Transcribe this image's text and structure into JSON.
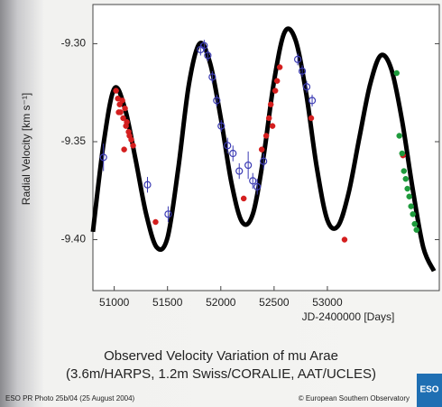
{
  "chart_data": {
    "type": "scatter",
    "title": "Observed Velocity Variation of mu Arae",
    "subtitle": "(3.6m/HARPS, 1.2m Swiss/CORALIE, AAT/UCLES)",
    "x_label": "JD-2400000 [Days]",
    "y_label": "Radial Velocity [km s⁻¹]",
    "xlim": [
      50800,
      54050
    ],
    "xticks": [
      51000,
      51500,
      52000,
      52500,
      53000
    ],
    "ylim": [
      -9.426,
      -9.28
    ],
    "yticks": [
      {
        "value": -9.3,
        "label": "-9.30"
      },
      -9.35,
      {
        "value": -9.4,
        "label": "-9.40"
      }
    ],
    "grid": false,
    "series": [
      {
        "type": "line",
        "color": "#000000",
        "x": [
          50800,
          50900,
          51000,
          51100,
          51200,
          51300,
          51400,
          51500,
          51600,
          51700,
          51800,
          51900,
          52000,
          52100,
          52200,
          52300,
          52400,
          52500,
          52600,
          52700,
          52800,
          52900,
          53000,
          53100,
          53200,
          53300,
          53400,
          53500,
          53600,
          53700,
          53800,
          53900,
          54000
        ],
        "values": [
          -9.396,
          -9.351,
          -9.323,
          -9.333,
          -9.359,
          -9.387,
          -9.404,
          -9.399,
          -9.364,
          -9.321,
          -9.3,
          -9.31,
          -9.338,
          -9.371,
          -9.391,
          -9.387,
          -9.358,
          -9.319,
          -9.294,
          -9.298,
          -9.325,
          -9.363,
          -9.39,
          -9.393,
          -9.376,
          -9.348,
          -9.321,
          -9.306,
          -9.313,
          -9.339,
          -9.374,
          -9.404,
          -9.416
        ]
      },
      {
        "type": "scatter",
        "marker": "filled",
        "color": "#d41e1e",
        "x": [
          51017,
          51034,
          51051,
          51059,
          51076,
          51084,
          51101,
          51110,
          51118,
          51135,
          51143,
          51160,
          51177,
          51093,
          51042,
          51388,
          52215,
          52384,
          52426,
          52452,
          52469,
          52485,
          52511,
          52528,
          52553,
          52848,
          53161,
          53709
        ],
        "values": [
          -9.324,
          -9.328,
          -9.331,
          -9.335,
          -9.329,
          -9.338,
          -9.333,
          -9.342,
          -9.34,
          -9.345,
          -9.347,
          -9.349,
          -9.352,
          -9.354,
          -9.335,
          -9.391,
          -9.379,
          -9.354,
          -9.347,
          -9.338,
          -9.331,
          -9.342,
          -9.324,
          -9.319,
          -9.312,
          -9.338,
          -9.4,
          -9.357
        ]
      },
      {
        "type": "scatter",
        "marker": "open",
        "color": "#3c3cb4",
        "x": [
          50899,
          51312,
          51506,
          51810,
          51844,
          51878,
          51920,
          51962,
          52004,
          52063,
          52114,
          52173,
          52257,
          52300,
          52342,
          52401,
          52722,
          52764,
          52806,
          52857
        ],
        "values": [
          -9.358,
          -9.372,
          -9.387,
          -9.303,
          -9.301,
          -9.306,
          -9.317,
          -9.329,
          -9.342,
          -9.352,
          -9.356,
          -9.365,
          -9.362,
          -9.37,
          -9.373,
          -9.36,
          -9.308,
          -9.314,
          -9.322,
          -9.329
        ],
        "errors": [
          0.007,
          0.004,
          0.004,
          0.003,
          0.003,
          0.003,
          0.003,
          0.003,
          0.003,
          0.004,
          0.004,
          0.004,
          0.007,
          0.004,
          0.004,
          0.004,
          0.003,
          0.003,
          0.003,
          0.003
        ]
      },
      {
        "type": "scatter",
        "marker": "filled",
        "color": "#1e9b3c",
        "x": [
          53650,
          53675,
          53701,
          53718,
          53735,
          53751,
          53768,
          53785,
          53802,
          53819,
          53836
        ],
        "values": [
          -9.315,
          -9.347,
          -9.356,
          -9.365,
          -9.369,
          -9.374,
          -9.378,
          -9.383,
          -9.387,
          -9.392,
          -9.395
        ]
      }
    ]
  },
  "footer": {
    "credit_left": "ESO PR Photo 25b/04 (25 August 2004)",
    "credit_right": "© European Southern Observatory",
    "logo": "ESO"
  }
}
